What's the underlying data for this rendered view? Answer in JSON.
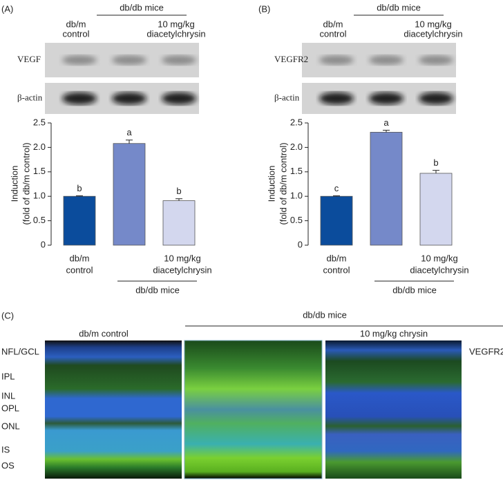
{
  "chart_data": [
    {
      "type": "bar",
      "panel": "(A)",
      "ylabel": [
        "Induction",
        "(fold of db/m control)"
      ],
      "categories": [
        [
          "db/m",
          "control"
        ],
        null,
        [
          "10 mg/kg",
          "diacetylchrysin"
        ]
      ],
      "group_label": "db/db mice",
      "values": [
        1.0,
        2.08,
        0.91
      ],
      "errors": [
        0.01,
        0.07,
        0.04
      ],
      "annotations": [
        "b",
        "a",
        "b"
      ],
      "colors": [
        "#0b4c9c",
        "#7589c9",
        "#d3d7ee"
      ],
      "ylim": [
        0,
        2.5
      ],
      "yticks": [
        0,
        0.5,
        {
          "value": 1,
          "label": "1.0"
        },
        1.5,
        {
          "value": 2,
          "label": "2.0"
        },
        2.5
      ],
      "blot": {
        "header": "db/db mice",
        "columns": [
          [
            "db/m",
            "control"
          ],
          [
            "10 mg/kg",
            "diacetylchrysin"
          ]
        ],
        "rows": [
          "VEGF",
          "β-actin"
        ]
      }
    },
    {
      "type": "bar",
      "panel": "(B)",
      "ylabel": [
        "Induction",
        "(fold of db/m control)"
      ],
      "categories": [
        [
          "db/m",
          "control"
        ],
        null,
        [
          "10 mg/kg",
          "diacetylchrysin"
        ]
      ],
      "group_label": "db/db mice",
      "values": [
        1.0,
        2.31,
        1.47
      ],
      "errors": [
        0.01,
        0.04,
        0.06
      ],
      "annotations": [
        "c",
        "a",
        "b"
      ],
      "colors": [
        "#0b4c9c",
        "#7589c9",
        "#d3d7ee"
      ],
      "ylim": [
        0,
        2.5
      ],
      "yticks": [
        0,
        0.5,
        {
          "value": 1,
          "label": "1.0"
        },
        1.5,
        {
          "value": 2,
          "label": "2.0"
        },
        2.5
      ],
      "blot": {
        "header": "db/db mice",
        "columns": [
          [
            "db/m",
            "control"
          ],
          [
            "10 mg/kg",
            "diacetylchrysin"
          ]
        ],
        "rows": [
          "VEGFR2",
          "β-actin"
        ]
      }
    }
  ],
  "panel_c": {
    "label": "(C)",
    "group": "db/db mice",
    "columns": [
      "db/m control",
      "10 mg/kg chrysin"
    ],
    "layers": [
      "NFL/GCL",
      "IPL",
      "INL",
      "OPL",
      "ONL",
      "IS",
      "OS"
    ],
    "stain": "VEGFR2"
  }
}
